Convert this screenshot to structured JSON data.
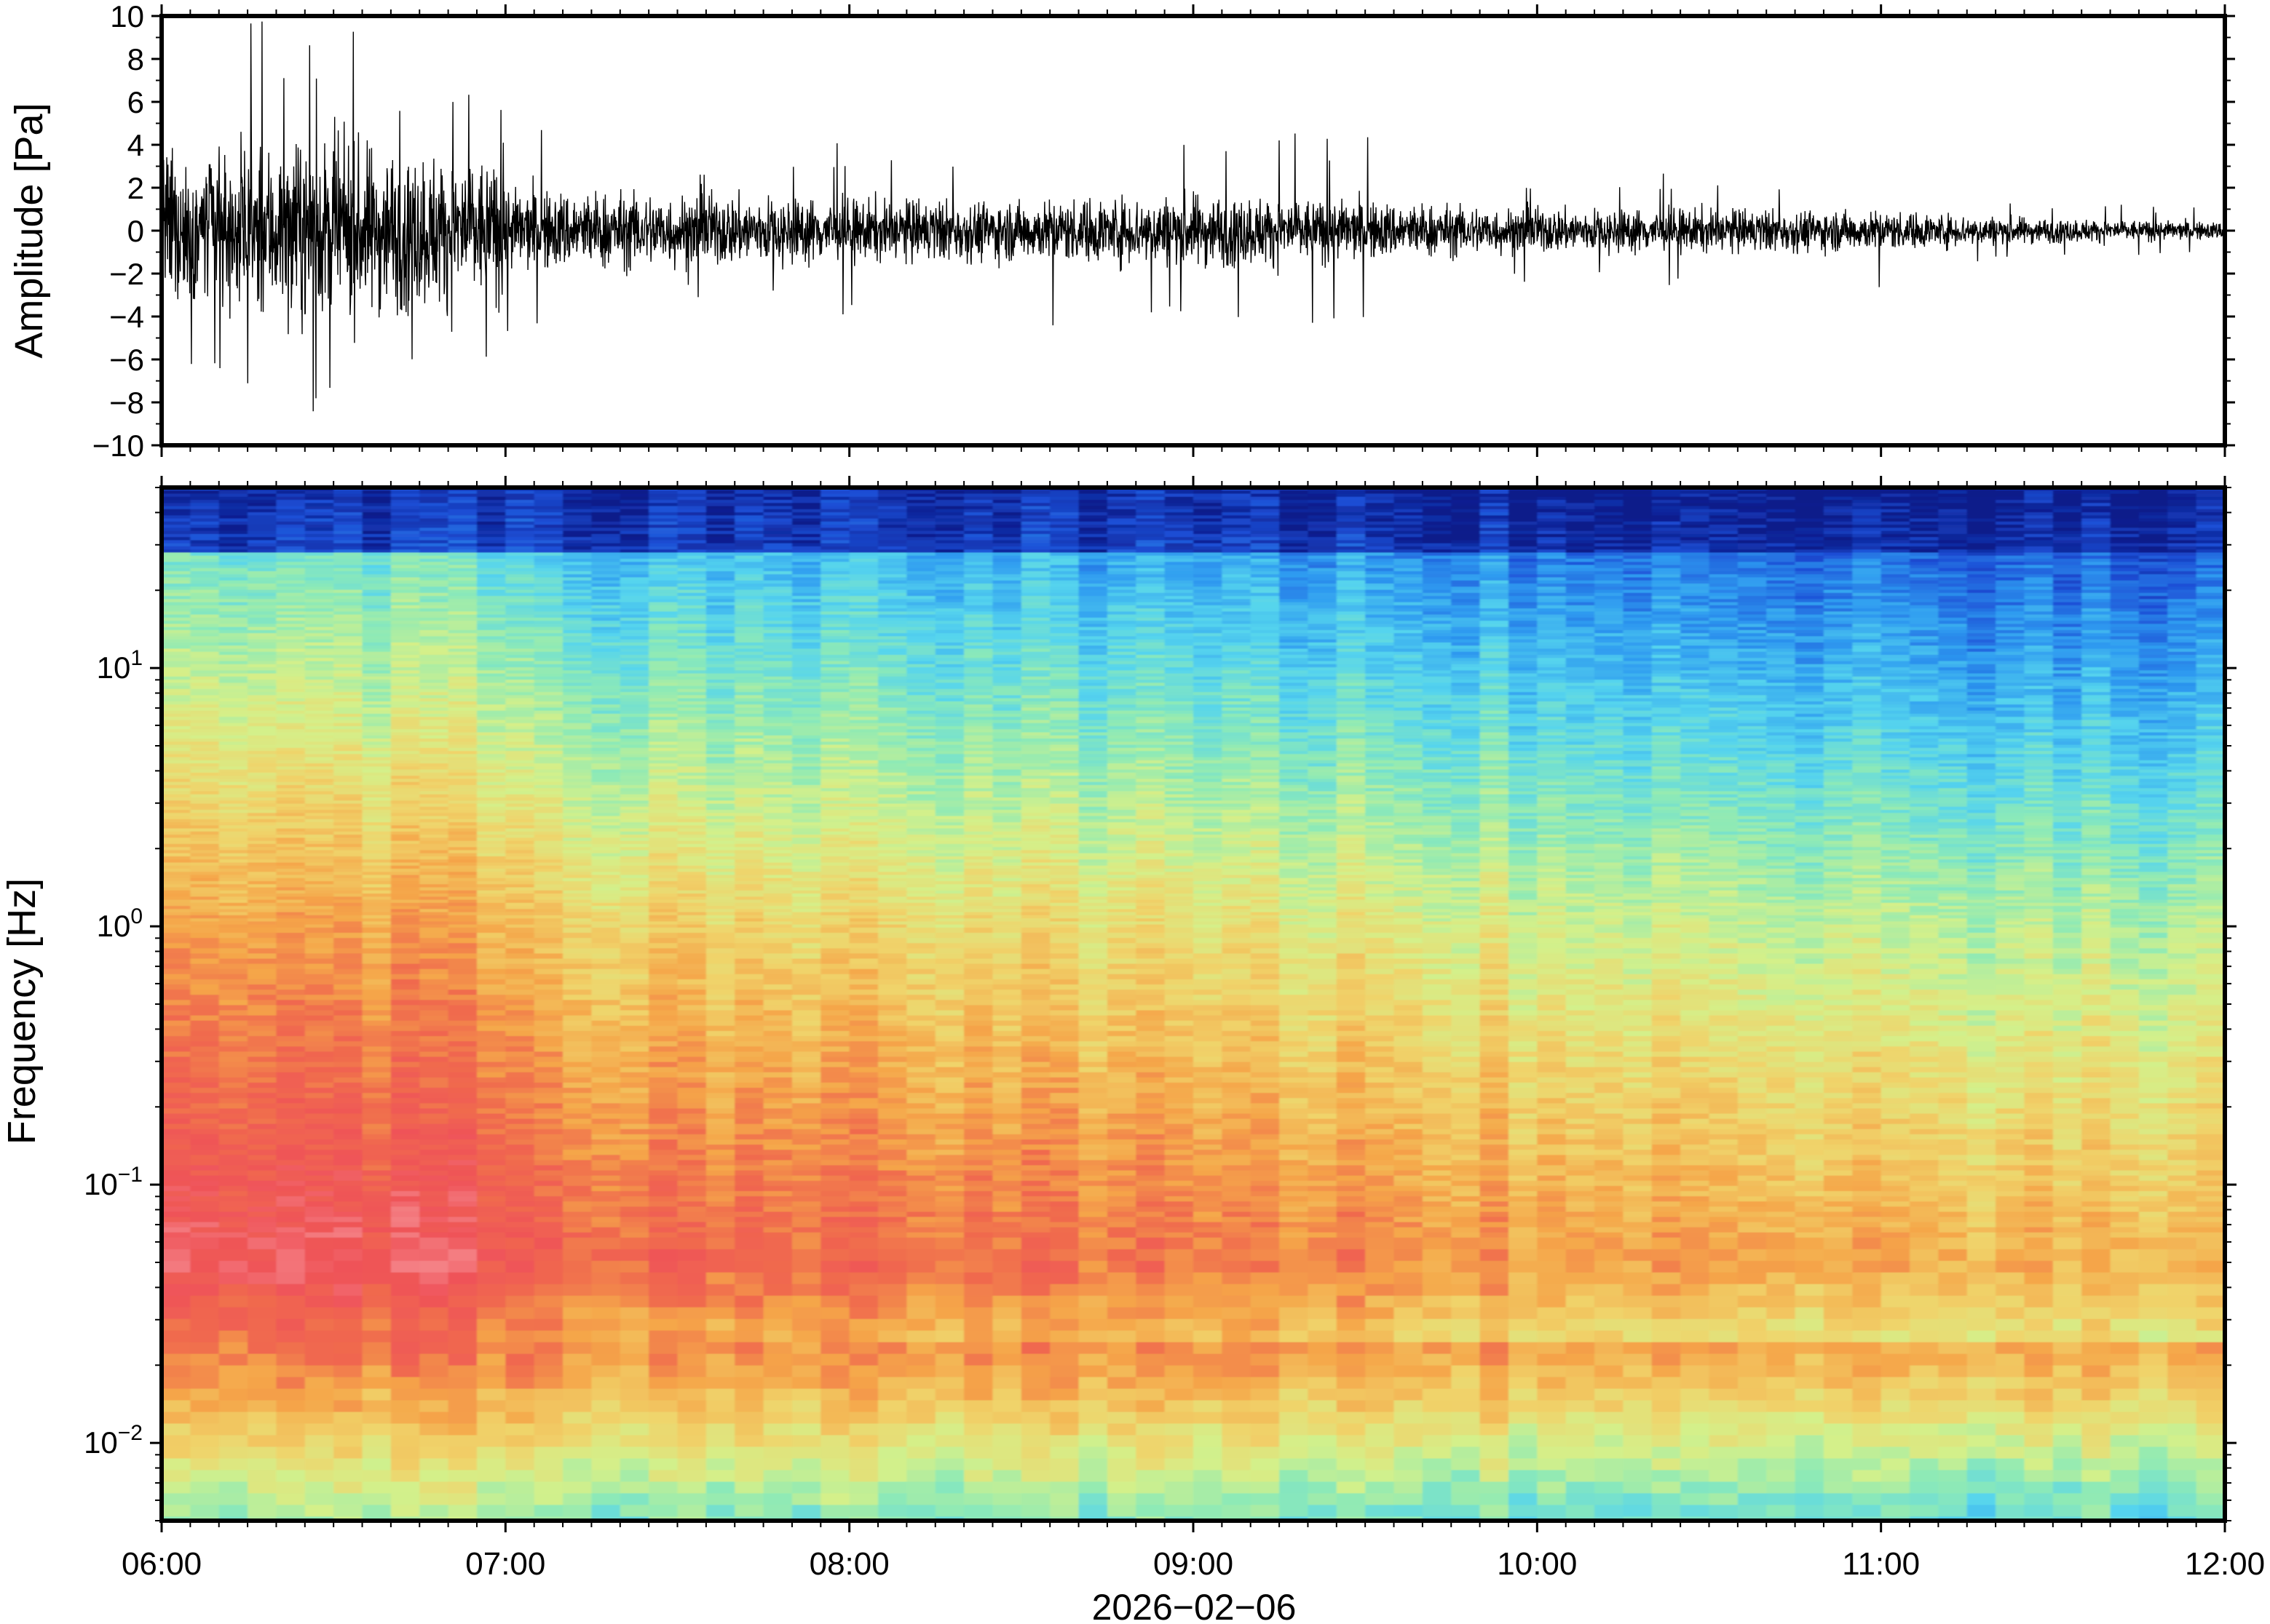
{
  "date_label": "2026−02−06",
  "x_ticks": [
    "06:00",
    "07:00",
    "08:00",
    "09:00",
    "10:00",
    "11:00",
    "12:00"
  ],
  "chart_data": [
    {
      "type": "line",
      "ylabel": "Amplitude [Pa]",
      "xlabel": "2026−02−06",
      "x_range": [
        "2026-02-06 06:00",
        "2026-02-06 12:00"
      ],
      "ylim": [
        -10,
        10
      ],
      "y_tick_labels": [
        "10",
        "8",
        "6",
        "4",
        "2",
        "0",
        "−2",
        "−4",
        "−6",
        "−8",
        "−10"
      ],
      "envelope": {
        "time": [
          "06:00",
          "06:30",
          "06:59",
          "07:01",
          "07:30",
          "08:00",
          "08:30",
          "09:00",
          "09:30",
          "10:00",
          "10:30",
          "11:00",
          "11:30",
          "12:00"
        ],
        "typical_amplitude_pa": [
          3.2,
          3.6,
          2.8,
          1.7,
          1.5,
          1.3,
          1.2,
          1.5,
          1.2,
          0.9,
          0.9,
          0.8,
          0.5,
          0.35
        ],
        "max_peak_pa": [
          9.8,
          10.0,
          6.5,
          5.0,
          4.0,
          4.4,
          4.2,
          6.0,
          4.5,
          3.0,
          2.8,
          2.7,
          1.6,
          1.0
        ]
      },
      "line_color": "#000000",
      "grid": false
    },
    {
      "type": "heatmap",
      "ylabel": "Frequency [Hz]",
      "xlabel": "2026−02−06",
      "x_range": [
        "2026-02-06 06:00",
        "2026-02-06 12:00"
      ],
      "y_scale": "log",
      "ylim_hz": [
        0.005,
        50
      ],
      "y_ticks": [
        {
          "base": "10",
          "exp": "1",
          "value": 10
        },
        {
          "base": "10",
          "exp": "0",
          "value": 1
        },
        {
          "base": "10",
          "exp": "−1",
          "value": 0.1
        },
        {
          "base": "10",
          "exp": "−2",
          "value": 0.01
        }
      ],
      "colormap": [
        "#0a1a8a",
        "#1d4fd6",
        "#2e9af0",
        "#55d4ee",
        "#8eeab6",
        "#d4f08a",
        "#f0d36a",
        "#f5a64a",
        "#f06a4e",
        "#ef5358",
        "#f79a9e"
      ],
      "trend": "power highest (red/pink) around 0.03–1 Hz during 06:00–08:00, spectrum decays toward blue at high frequencies, overall level decreasing toward 12:00",
      "grid": false
    }
  ]
}
